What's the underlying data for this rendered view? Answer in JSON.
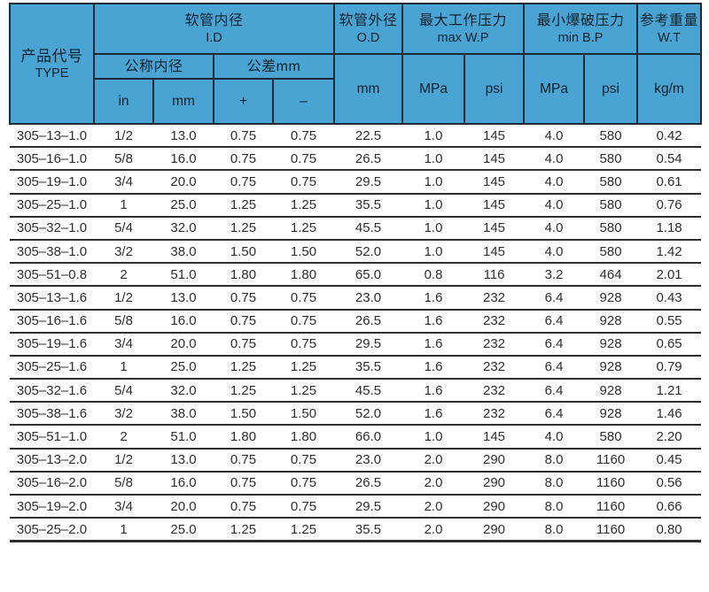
{
  "chart_data": {
    "type": "table",
    "header": {
      "type_zh": "产品代号",
      "type_en": "TYPE",
      "id_zh": "软管内径",
      "id_en": "I.D",
      "nominal_zh": "公称内径",
      "tolerance_zh": "公差mm",
      "unit_in": "in",
      "unit_mm": "mm",
      "tol_plus": "+",
      "tol_minus": "–",
      "od_zh": "软管外径",
      "od_en": "O.D",
      "od_unit": "mm",
      "wp_zh": "最大工作压力",
      "wp_en": "max W.P",
      "bp_zh": "最小爆破压力",
      "bp_en": "min B.P",
      "unit_mpa": "MPa",
      "unit_psi": "psi",
      "wt_zh": "参考重量",
      "wt_en": "W.T",
      "wt_unit": "kg/m"
    },
    "columns_flat": [
      "TYPE",
      "I.D in",
      "I.D mm",
      "tolerance +",
      "tolerance –",
      "O.D mm",
      "max W.P MPa",
      "max W.P psi",
      "min B.P MPa",
      "min B.P psi",
      "W.T kg/m"
    ],
    "rows": [
      [
        "305–13–1.0",
        "1/2",
        "13.0",
        "0.75",
        "0.75",
        "22.5",
        "1.0",
        "145",
        "4.0",
        "580",
        "0.42"
      ],
      [
        "305–16–1.0",
        "5/8",
        "16.0",
        "0.75",
        "0.75",
        "26.5",
        "1.0",
        "145",
        "4.0",
        "580",
        "0.54"
      ],
      [
        "305–19–1.0",
        "3/4",
        "20.0",
        "0.75",
        "0.75",
        "29.5",
        "1.0",
        "145",
        "4.0",
        "580",
        "0.61"
      ],
      [
        "305–25–1.0",
        "1",
        "25.0",
        "1.25",
        "1.25",
        "35.5",
        "1.0",
        "145",
        "4.0",
        "580",
        "0.76"
      ],
      [
        "305–32–1.0",
        "5/4",
        "32.0",
        "1.25",
        "1.25",
        "45.5",
        "1.0",
        "145",
        "4.0",
        "580",
        "1.18"
      ],
      [
        "305–38–1.0",
        "3/2",
        "38.0",
        "1.50",
        "1.50",
        "52.0",
        "1.0",
        "145",
        "4.0",
        "580",
        "1.42"
      ],
      [
        "305–51–0.8",
        "2",
        "51.0",
        "1.80",
        "1.80",
        "65.0",
        "0.8",
        "116",
        "3.2",
        "464",
        "2.01"
      ],
      [
        "305–13–1.6",
        "1/2",
        "13.0",
        "0.75",
        "0.75",
        "23.0",
        "1.6",
        "232",
        "6.4",
        "928",
        "0.43"
      ],
      [
        "305–16–1.6",
        "5/8",
        "16.0",
        "0.75",
        "0.75",
        "26.5",
        "1.6",
        "232",
        "6.4",
        "928",
        "0.55"
      ],
      [
        "305–19–1.6",
        "3/4",
        "20.0",
        "0.75",
        "0.75",
        "29.5",
        "1.6",
        "232",
        "6.4",
        "928",
        "0.65"
      ],
      [
        "305–25–1.6",
        "1",
        "25.0",
        "1.25",
        "1.25",
        "35.5",
        "1.6",
        "232",
        "6.4",
        "928",
        "0.79"
      ],
      [
        "305–32–1.6",
        "5/4",
        "32.0",
        "1.25",
        "1.25",
        "45.5",
        "1.6",
        "232",
        "6.4",
        "928",
        "1.21"
      ],
      [
        "305–38–1.6",
        "3/2",
        "38.0",
        "1.50",
        "1.50",
        "52.0",
        "1.6",
        "232",
        "6.4",
        "928",
        "1.46"
      ],
      [
        "305–51–1.0",
        "2",
        "51.0",
        "1.80",
        "1.80",
        "66.0",
        "1.0",
        "145",
        "4.0",
        "580",
        "2.20"
      ],
      [
        "305–13–2.0",
        "1/2",
        "13.0",
        "0.75",
        "0.75",
        "23.0",
        "2.0",
        "290",
        "8.0",
        "1160",
        "0.45"
      ],
      [
        "305–16–2.0",
        "5/8",
        "16.0",
        "0.75",
        "0.75",
        "26.5",
        "2.0",
        "290",
        "8.0",
        "1160",
        "0.56"
      ],
      [
        "305–19–2.0",
        "3/4",
        "20.0",
        "0.75",
        "0.75",
        "29.5",
        "2.0",
        "290",
        "8.0",
        "1160",
        "0.66"
      ],
      [
        "305–25–2.0",
        "1",
        "25.0",
        "1.25",
        "1.25",
        "35.5",
        "2.0",
        "290",
        "8.0",
        "1160",
        "0.80"
      ]
    ],
    "layout": {
      "header_bg": "#4aa4d3",
      "header_border": "#1c2b36",
      "row_line_color": "#2e2e2e",
      "grid_in_body": "horizontal-only"
    }
  }
}
